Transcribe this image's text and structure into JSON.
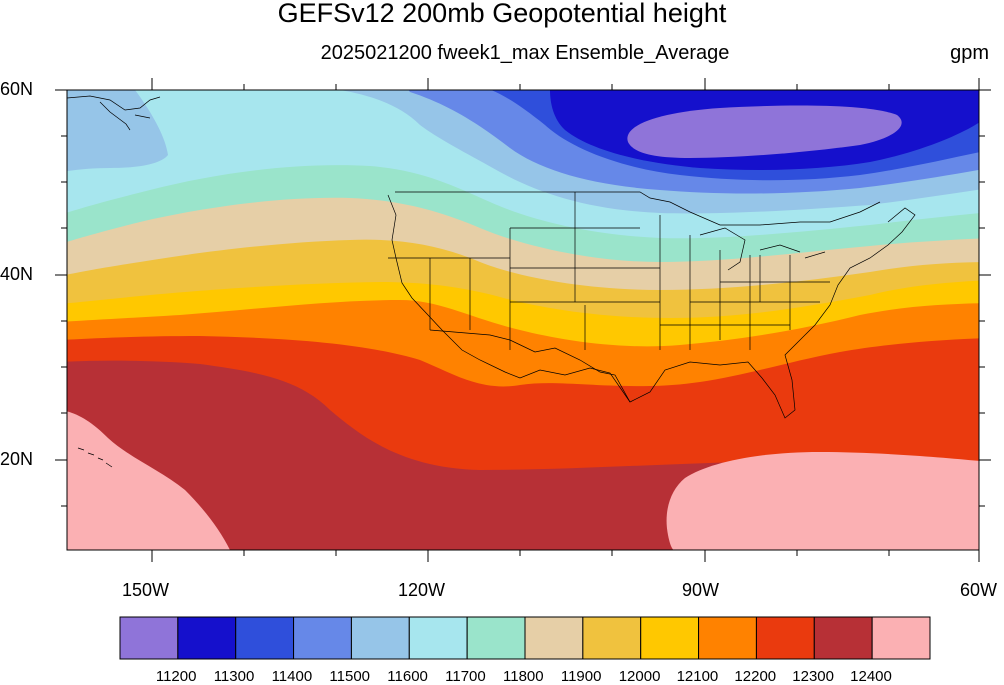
{
  "header": {
    "title": "GEFSv12 200mb Geopotential height",
    "subtitle": "2025021200 fweek1_max Ensemble_Average",
    "units": "gpm"
  },
  "axes": {
    "lat_labels": [
      "60N",
      "40N",
      "20N"
    ],
    "lon_labels": [
      "150W",
      "120W",
      "90W",
      "60W"
    ]
  },
  "colorbar": {
    "colors": [
      "#8f74d9",
      "#1510cc",
      "#2f4fdb",
      "#6688e8",
      "#96c5e8",
      "#a7e6ee",
      "#9ae4cb",
      "#e6cfa7",
      "#f0c23e",
      "#ffc800",
      "#ff8200",
      "#ea3a0e",
      "#b73036",
      "#fbb0b3"
    ],
    "labels": [
      "11200",
      "11300",
      "11400",
      "11500",
      "11600",
      "11700",
      "11800",
      "11900",
      "12000",
      "12100",
      "12200",
      "12300",
      "12400"
    ]
  }
}
